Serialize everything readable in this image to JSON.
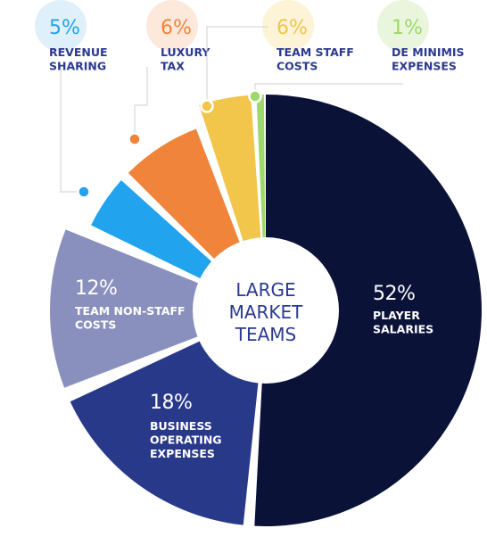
{
  "chart_data": {
    "type": "pie",
    "title": "",
    "center_label": [
      "LARGE",
      "MARKET",
      "TEAMS"
    ],
    "slices": [
      {
        "label_lines": [
          "PLAYER",
          "SALARIES"
        ],
        "percent_text": "52%",
        "value": 52,
        "color": "#0b1238"
      },
      {
        "label_lines": [
          "BUSINESS",
          "OPERATING",
          "EXPENSES"
        ],
        "percent_text": "18%",
        "value": 18,
        "color": "#28398a"
      },
      {
        "label_lines": [
          "TEAM NON-STAFF",
          "COSTS"
        ],
        "percent_text": "12%",
        "value": 12,
        "color": "#8a90bd"
      },
      {
        "label_lines": [
          "REVENUE",
          "SHARING"
        ],
        "percent_text": "5%",
        "value": 5,
        "color": "#21a3ee"
      },
      {
        "label_lines": [
          "LUXURY",
          "TAX"
        ],
        "percent_text": "6%",
        "value": 6,
        "color": "#f1843b"
      },
      {
        "label_lines": [
          "TEAM STAFF",
          "COSTS"
        ],
        "percent_text": "6%",
        "value": 6,
        "color": "#f2c54b"
      },
      {
        "label_lines": [
          "DE MINIMIS",
          "EXPENSES"
        ],
        "percent_text": "1%",
        "value": 1,
        "color": "#9dd86a"
      }
    ]
  },
  "colors": {
    "label_text": "#2b3990",
    "white_text": "#ffffff",
    "leader": "#cfcfcf"
  }
}
